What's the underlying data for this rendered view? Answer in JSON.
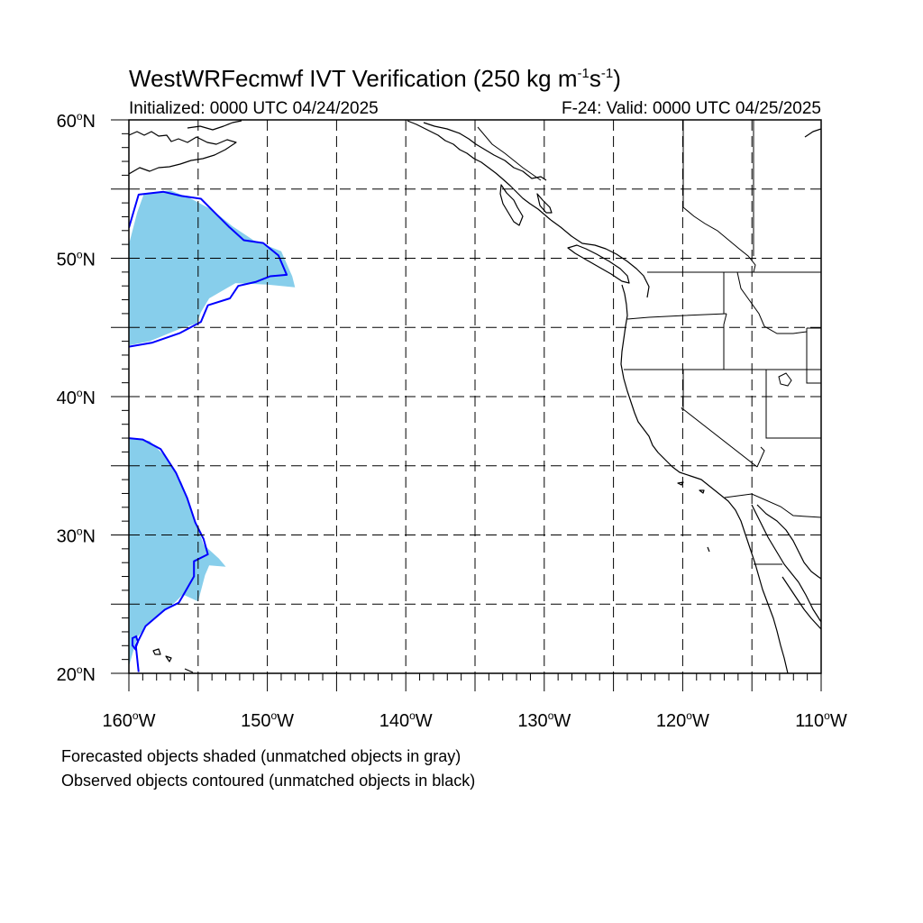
{
  "title": {
    "main": "WestWRFecmwf IVT Verification (250 kg m",
    "exp1": "-1",
    "mid": "s",
    "exp2": "-1",
    "end": ")"
  },
  "subtitle_left": "Initialized: 0000 UTC 04/24/2025",
  "subtitle_right": "F-24: Valid: 0000 UTC 04/25/2025",
  "map": {
    "projection": "equirectangular",
    "lon_range": [
      -160,
      -110
    ],
    "lat_range": [
      20,
      60
    ],
    "grid": "dashed every 5 degrees",
    "lat_labels": [
      {
        "lat": 60,
        "text": "60",
        "suffix": "N"
      },
      {
        "lat": 50,
        "text": "50",
        "suffix": "N"
      },
      {
        "lat": 40,
        "text": "40",
        "suffix": "N"
      },
      {
        "lat": 30,
        "text": "30",
        "suffix": "N"
      },
      {
        "lat": 20,
        "text": "20",
        "suffix": "N"
      }
    ],
    "lon_labels": [
      {
        "lon": -160,
        "text": "160",
        "suffix": "W"
      },
      {
        "lon": -150,
        "text": "150",
        "suffix": "W"
      },
      {
        "lon": -140,
        "text": "140",
        "suffix": "W"
      },
      {
        "lon": -130,
        "text": "130",
        "suffix": "W"
      },
      {
        "lon": -120,
        "text": "120",
        "suffix": "W"
      },
      {
        "lon": -110,
        "text": "110",
        "suffix": "W"
      }
    ],
    "colors": {
      "forecast_fill": "#87ceeb",
      "observed_contour": "#0000ff",
      "coastline": "#000000",
      "grid": "#000000"
    },
    "forecast_objects": [
      {
        "name": "north",
        "lonlat": [
          [
            -160,
            51.0
          ],
          [
            -159.4,
            53.3
          ],
          [
            -158.9,
            54.7
          ],
          [
            -157,
            54.9
          ],
          [
            -155.5,
            54.3
          ],
          [
            -154,
            53.5
          ],
          [
            -152.5,
            52.3
          ],
          [
            -151,
            51.3
          ],
          [
            -149,
            50.5
          ],
          [
            -148.2,
            48.7
          ],
          [
            -148,
            47.9
          ],
          [
            -150,
            48.1
          ],
          [
            -152.3,
            48.2
          ],
          [
            -154.2,
            47.1
          ],
          [
            -154.8,
            46.1
          ],
          [
            -155.1,
            45.3
          ],
          [
            -156.3,
            44.9
          ],
          [
            -158.5,
            44.0
          ],
          [
            -160,
            43.7
          ]
        ]
      },
      {
        "name": "south",
        "lonlat": [
          [
            -160,
            37.0
          ],
          [
            -158.5,
            36.8
          ],
          [
            -157.5,
            35.8
          ],
          [
            -156.2,
            33.8
          ],
          [
            -155.4,
            31.6
          ],
          [
            -154.6,
            29.3
          ],
          [
            -153.5,
            28.3
          ],
          [
            -153.0,
            27.7
          ],
          [
            -154.2,
            27.8
          ],
          [
            -154.5,
            27.1
          ],
          [
            -155.0,
            25.2
          ],
          [
            -156.1,
            25.7
          ],
          [
            -157.0,
            24.8
          ],
          [
            -158.4,
            23.8
          ],
          [
            -159.4,
            22.6
          ],
          [
            -160,
            20.5
          ]
        ]
      }
    ],
    "observed_objects": [
      {
        "name": "north",
        "lonlat": [
          [
            -160,
            52.2
          ],
          [
            -159.3,
            54.6
          ],
          [
            -157.5,
            54.8
          ],
          [
            -156.2,
            54.5
          ],
          [
            -154.8,
            54.3
          ],
          [
            -153.8,
            53.3
          ],
          [
            -152.8,
            52.3
          ],
          [
            -151.7,
            51.3
          ],
          [
            -150.3,
            51.1
          ],
          [
            -149.2,
            50.2
          ],
          [
            -148.6,
            48.8
          ],
          [
            -149.8,
            48.7
          ],
          [
            -150.8,
            48.3
          ],
          [
            -152.1,
            48.0
          ],
          [
            -152.7,
            47.1
          ],
          [
            -154.3,
            46.6
          ],
          [
            -154.8,
            45.4
          ],
          [
            -156.3,
            44.6
          ],
          [
            -158.3,
            43.9
          ],
          [
            -160,
            43.6
          ]
        ]
      },
      {
        "name": "south",
        "lonlat": [
          [
            -160,
            37.0
          ],
          [
            -159.0,
            36.9
          ],
          [
            -157.7,
            36.2
          ],
          [
            -156.6,
            34.5
          ],
          [
            -155.8,
            32.7
          ],
          [
            -155.2,
            30.9
          ],
          [
            -154.6,
            29.7
          ],
          [
            -154.3,
            28.6
          ],
          [
            -155.3,
            28.1
          ],
          [
            -155.3,
            27.0
          ],
          [
            -156.1,
            25.6
          ],
          [
            -156.4,
            25.1
          ],
          [
            -157.4,
            24.6
          ],
          [
            -158.8,
            23.4
          ],
          [
            -159.5,
            22.0
          ],
          [
            -159.3,
            20.1
          ]
        ]
      }
    ]
  },
  "footnote": {
    "line1": "Forecasted objects shaded (unmatched objects in gray)",
    "line2": "Observed objects contoured (unmatched objects in black)"
  }
}
